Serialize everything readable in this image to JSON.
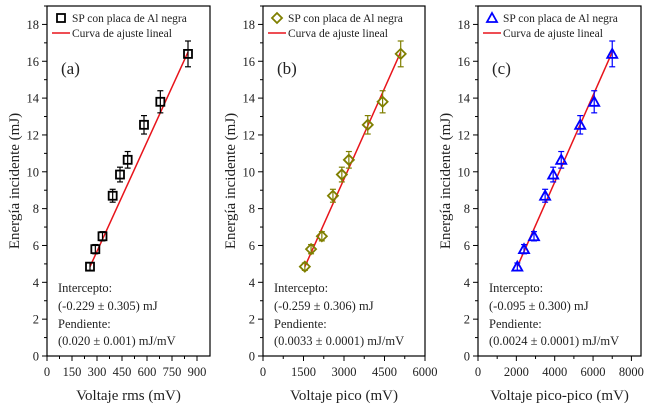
{
  "chart_data": [
    {
      "type": "scatter",
      "panel_label": "(a)",
      "xlabel": "Voltaje rms (mV)",
      "ylabel": "Energía incidente (mJ)",
      "xlim": [
        0,
        978
      ],
      "ylim": [
        0,
        19
      ],
      "xticks": [
        0,
        150,
        300,
        450,
        600,
        750,
        900
      ],
      "xtick_labels": [
        "0",
        "150",
        "300",
        "450",
        "600",
        "750",
        "900"
      ],
      "yticks": [
        0,
        2,
        4,
        6,
        8,
        10,
        12,
        14,
        16,
        18
      ],
      "ytick_labels": [
        "0",
        "2",
        "4",
        "6",
        "8",
        "10",
        "12",
        "14",
        "16",
        "18"
      ],
      "legend": {
        "placement": "top-left",
        "entries": [
          "SP con placa de Al negra",
          "Curva de ajuste lineal"
        ]
      },
      "marker": "square",
      "color": "#000000",
      "series": [
        {
          "name": "SP con placa de Al negra",
          "x": [
            258,
            290,
            333,
            394,
            438,
            484,
            582,
            680,
            846
          ],
          "y": [
            4.85,
            5.8,
            6.5,
            8.7,
            9.85,
            10.65,
            12.55,
            13.8,
            16.4
          ],
          "yerr": [
            0.2,
            0.25,
            0.25,
            0.35,
            0.4,
            0.45,
            0.5,
            0.6,
            0.7
          ]
        }
      ],
      "fit": {
        "name": "Curva de ajuste lineal",
        "x_range": [
          258,
          846
        ],
        "y_range": [
          4.85,
          16.5
        ],
        "color": "#e8141b"
      },
      "annotations": [
        "Intercepto:",
        "(-0.229 ± 0.305) mJ",
        "Pendiente:",
        "(0.020 ± 0.001) mJ/mV"
      ],
      "grid": false
    },
    {
      "type": "scatter",
      "panel_label": "(b)",
      "xlabel": "Voltaje pico (mV)",
      "ylabel": "Energía incidente (mJ)",
      "xlim": [
        0,
        6000
      ],
      "ylim": [
        0,
        19
      ],
      "xticks": [
        0,
        1500,
        3000,
        4500,
        6000
      ],
      "xtick_labels": [
        "0",
        "1500",
        "3000",
        "4500",
        "6000"
      ],
      "yticks": [
        0,
        2,
        4,
        6,
        8,
        10,
        12,
        14,
        16,
        18
      ],
      "ytick_labels": [
        "0",
        "2",
        "4",
        "6",
        "8",
        "10",
        "12",
        "14",
        "16",
        "18"
      ],
      "legend": {
        "placement": "top-left",
        "entries": [
          "SP con placa de Al negra",
          "Curva de ajuste lineal"
        ]
      },
      "marker": "diamond",
      "color": "#7f7f00",
      "series": [
        {
          "name": "SP con placa de Al negra",
          "x": [
            1550,
            1780,
            2180,
            2590,
            2920,
            3180,
            3880,
            4430,
            5100
          ],
          "y": [
            4.85,
            5.8,
            6.5,
            8.7,
            9.85,
            10.65,
            12.55,
            13.8,
            16.4
          ],
          "yerr": [
            0.2,
            0.25,
            0.25,
            0.35,
            0.4,
            0.45,
            0.5,
            0.6,
            0.7
          ]
        }
      ],
      "fit": {
        "name": "Curva de ajuste lineal",
        "x_range": [
          1550,
          5100
        ],
        "y_range": [
          4.85,
          16.5
        ],
        "color": "#e8141b"
      },
      "annotations": [
        "Intercepto:",
        "(-0.259 ± 0.306) mJ",
        "Pendiente:",
        "(0.0033 ± 0.0001) mJ/mV"
      ],
      "grid": false
    },
    {
      "type": "scatter",
      "panel_label": "(c)",
      "xlabel": "Voltaje pico-pico (mV)",
      "ylabel": "Energía incidente (mJ)",
      "xlim": [
        0,
        8500
      ],
      "ylim": [
        0,
        19
      ],
      "xticks": [
        0,
        2000,
        4000,
        6000,
        8000
      ],
      "xtick_labels": [
        "0",
        "2000",
        "4000",
        "6000",
        "8000"
      ],
      "yticks": [
        0,
        2,
        4,
        6,
        8,
        10,
        12,
        14,
        16,
        18
      ],
      "ytick_labels": [
        "0",
        "2",
        "4",
        "6",
        "8",
        "10",
        "12",
        "14",
        "16",
        "18"
      ],
      "legend": {
        "placement": "top-left",
        "entries": [
          "SP con placa de Al negra",
          "Curva de ajuste lineal"
        ]
      },
      "marker": "triangle",
      "color": "#0000ff",
      "series": [
        {
          "name": "SP con placa de Al negra",
          "x": [
            2050,
            2400,
            2920,
            3500,
            3920,
            4340,
            5330,
            6060,
            7000
          ],
          "y": [
            4.85,
            5.8,
            6.5,
            8.7,
            9.85,
            10.65,
            12.55,
            13.8,
            16.4
          ],
          "yerr": [
            0.2,
            0.25,
            0.25,
            0.35,
            0.4,
            0.45,
            0.5,
            0.6,
            0.7
          ]
        }
      ],
      "fit": {
        "name": "Curva de ajuste lineal",
        "x_range": [
          2050,
          7000
        ],
        "y_range": [
          4.85,
          16.5
        ],
        "color": "#e8141b"
      },
      "annotations": [
        "Intercepto:",
        "(-0.095 ± 0.300) mJ",
        "Pendiente:",
        "(0.0024 ± 0.0001) mJ/mV"
      ],
      "grid": false
    }
  ]
}
